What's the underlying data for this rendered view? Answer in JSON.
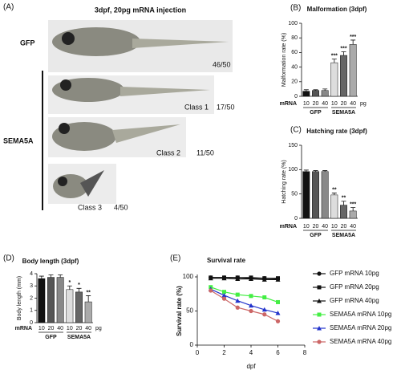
{
  "panel_a": {
    "panel": "(A)",
    "title": "3dpf, 20pg mRNA injection",
    "control_label": "GFP",
    "group_label": "SEMA5A",
    "control_count": "46/50",
    "classes": [
      {
        "label": "Class 1",
        "count": "17/50"
      },
      {
        "label": "Class 2",
        "count": "11/50"
      },
      {
        "label": "Class 3",
        "count": "4/50"
      }
    ]
  },
  "chart_data": [
    {
      "type": "bar",
      "panel": "(B)",
      "title": "Malformation (3dpf)",
      "y_label": "Malformation rate (%)",
      "x_prefix": "mRNA",
      "unit": "pg",
      "categories": [
        "10",
        "20",
        "40",
        "10",
        "20",
        "40"
      ],
      "groups": [
        "GFP",
        "SEMA5A"
      ],
      "values": [
        7,
        8,
        8,
        46,
        56,
        71
      ],
      "errors": [
        2,
        1,
        2,
        5,
        5,
        6
      ],
      "annotations": [
        null,
        null,
        null,
        "***",
        "***",
        "***"
      ],
      "colors": [
        "#111111",
        "#555555",
        "#888888",
        "#dddddd",
        "#666666",
        "#aaaaaa"
      ],
      "ylim": [
        0,
        100
      ],
      "yticks": [
        0,
        20,
        40,
        60,
        80,
        100
      ]
    },
    {
      "type": "bar",
      "panel": "(C)",
      "title": "Hatching rate (3dpf)",
      "y_label": "Hatching rate (%)",
      "x_prefix": "mRNA",
      "categories": [
        "10",
        "20",
        "40",
        "10",
        "20",
        "40"
      ],
      "groups": [
        "GFP",
        "SEMA5A"
      ],
      "values": [
        96,
        96,
        96,
        48,
        27,
        15
      ],
      "errors": [
        3,
        2,
        2,
        4,
        8,
        7
      ],
      "annotations": [
        null,
        null,
        null,
        "**",
        "**",
        "***"
      ],
      "colors": [
        "#111111",
        "#555555",
        "#888888",
        "#dddddd",
        "#666666",
        "#aaaaaa"
      ],
      "ylim": [
        0,
        150
      ],
      "yticks": [
        0,
        50,
        100,
        150
      ]
    },
    {
      "type": "bar",
      "panel": "(D)",
      "title": "Body length (3dpf)",
      "y_label": "Body length (mm)",
      "x_prefix": "mRNA",
      "unit": "pg",
      "categories": [
        "10",
        "20",
        "40",
        "10",
        "20",
        "40"
      ],
      "groups": [
        "GFP",
        "SEMA5A"
      ],
      "values": [
        3.6,
        3.7,
        3.7,
        2.7,
        2.5,
        1.7
      ],
      "errors": [
        0.2,
        0.2,
        0.2,
        0.3,
        0.3,
        0.5
      ],
      "annotations": [
        null,
        null,
        null,
        "*",
        "*",
        "**"
      ],
      "colors": [
        "#111111",
        "#555555",
        "#888888",
        "#dddddd",
        "#666666",
        "#aaaaaa"
      ],
      "ylim": [
        0,
        4
      ],
      "yticks": [
        0,
        1,
        2,
        3,
        4
      ]
    },
    {
      "type": "line",
      "panel": "(E)",
      "title": "Survival rate",
      "x_label": "dpf",
      "y_label": "Survival rate (%)",
      "x": [
        1,
        2,
        3,
        4,
        5,
        6
      ],
      "xlim": [
        0,
        8
      ],
      "xticks": [
        0,
        2,
        4,
        6,
        8
      ],
      "ylim": [
        0,
        100
      ],
      "yticks": [
        0,
        50,
        100
      ],
      "series": [
        {
          "name": "GFP mRNA 10pg",
          "color": "#111111",
          "marker": "circle",
          "values": [
            99,
            99,
            99,
            98,
            98,
            97
          ]
        },
        {
          "name": "GFP mRNA 20pg",
          "color": "#111111",
          "marker": "square",
          "values": [
            99,
            99,
            99,
            99,
            98,
            98
          ]
        },
        {
          "name": "GFP mRNA 40pg",
          "color": "#111111",
          "marker": "triangle",
          "values": [
            98,
            98,
            97,
            97,
            96,
            96
          ]
        },
        {
          "name": "SEMA5A mRNA 10pg",
          "color": "#44ee44",
          "marker": "square",
          "values": [
            85,
            78,
            74,
            72,
            70,
            63
          ]
        },
        {
          "name": "SEMA5A mRNA 20pg",
          "color": "#2233cc",
          "marker": "triangle",
          "values": [
            82,
            73,
            65,
            58,
            52,
            47
          ]
        },
        {
          "name": "SEMA5A mRNA 40pg",
          "color": "#cc6666",
          "marker": "circle",
          "values": [
            80,
            68,
            55,
            50,
            45,
            35
          ]
        }
      ]
    }
  ]
}
